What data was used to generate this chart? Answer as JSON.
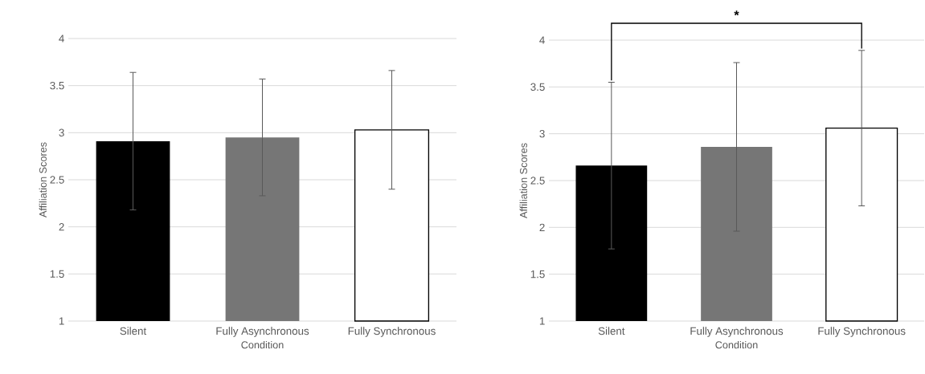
{
  "chart_data": [
    {
      "type": "bar",
      "categories": [
        "Silent",
        "Fully Asynchronous",
        "Fully Synchronous"
      ],
      "values": [
        2.91,
        2.95,
        3.03
      ],
      "colors": [
        "#000000",
        "#767676",
        "#ffffff"
      ],
      "errors": [
        0.73,
        0.62,
        0.63
      ],
      "xlabel": "Condition",
      "ylabel": "Affiliation Scores",
      "ylim": [
        1,
        4
      ],
      "yticks": [
        1,
        1.5,
        2,
        2.5,
        3,
        3.5,
        4
      ],
      "grid": "y"
    },
    {
      "type": "bar",
      "categories": [
        "Silent",
        "Fully Asynchronous",
        "Fully Synchronous"
      ],
      "values": [
        2.66,
        2.86,
        3.06
      ],
      "colors": [
        "#000000",
        "#767676",
        "#ffffff"
      ],
      "errors": [
        0.89,
        0.9,
        0.83
      ],
      "xlabel": "Condition",
      "ylabel": "Affiliation Scores",
      "ylim": [
        1,
        4
      ],
      "yticks": [
        1,
        1.5,
        2,
        2.5,
        3,
        3.5,
        4
      ],
      "grid": "y",
      "annotations": [
        "*"
      ]
    }
  ]
}
